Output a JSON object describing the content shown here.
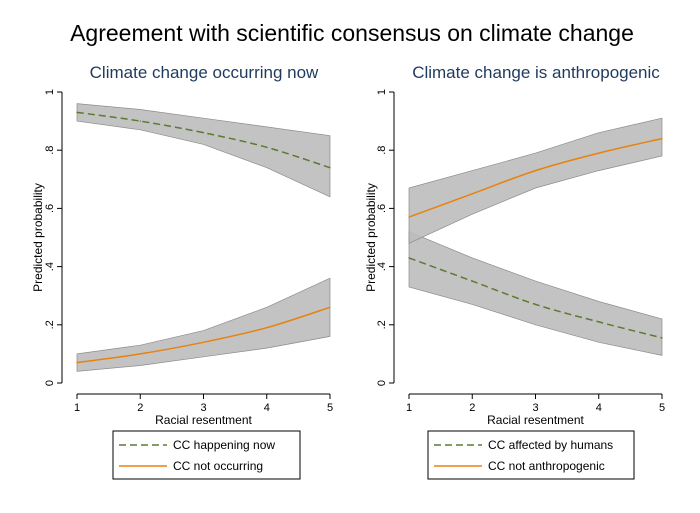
{
  "title": "Agreement with scientific consensus on climate change",
  "colors": {
    "band": "#bdbdbd",
    "band_stroke": "#8c8c8c",
    "dashed": "#5c7a32",
    "solid": "#e8820c",
    "panel_title": "#1f3a5f"
  },
  "chart_data": [
    {
      "type": "line",
      "title": "Climate change occurring now",
      "xlabel": "Racial resentment",
      "ylabel": "Predicted probability",
      "xlim": [
        1,
        5
      ],
      "ylim": [
        0,
        1
      ],
      "x_ticks": [
        "1",
        "2",
        "3",
        "4",
        "5"
      ],
      "y_ticks": [
        "0",
        ".2",
        ".4",
        ".6",
        ".8",
        "1"
      ],
      "grid": false,
      "legend_position": "bottom",
      "x": [
        1,
        2,
        3,
        4,
        5
      ],
      "series": [
        {
          "name": "CC happening now",
          "style": "dashed",
          "values": [
            0.93,
            0.9,
            0.86,
            0.81,
            0.74
          ],
          "ci_lower": [
            0.9,
            0.87,
            0.82,
            0.74,
            0.64
          ],
          "ci_upper": [
            0.96,
            0.94,
            0.91,
            0.88,
            0.85
          ]
        },
        {
          "name": "CC not occurring",
          "style": "solid",
          "values": [
            0.07,
            0.1,
            0.14,
            0.19,
            0.26
          ],
          "ci_lower": [
            0.04,
            0.06,
            0.09,
            0.12,
            0.16
          ],
          "ci_upper": [
            0.1,
            0.13,
            0.18,
            0.26,
            0.36
          ]
        }
      ]
    },
    {
      "type": "line",
      "title": "Climate change is anthropogenic",
      "xlabel": "Racial resentment",
      "ylabel": "Predicted probability",
      "xlim": [
        1,
        5
      ],
      "ylim": [
        0,
        1
      ],
      "x_ticks": [
        "1",
        "2",
        "3",
        "4",
        "5"
      ],
      "y_ticks": [
        "0",
        ".2",
        ".4",
        ".6",
        ".8",
        "1"
      ],
      "grid": false,
      "legend_position": "bottom",
      "x": [
        1,
        2,
        3,
        4,
        5
      ],
      "series": [
        {
          "name": "CC affected by humans",
          "style": "dashed",
          "values": [
            0.43,
            0.35,
            0.27,
            0.21,
            0.155
          ],
          "ci_lower": [
            0.33,
            0.27,
            0.2,
            0.14,
            0.095
          ],
          "ci_upper": [
            0.52,
            0.43,
            0.35,
            0.28,
            0.22
          ]
        },
        {
          "name": "CC not anthropogenic",
          "style": "solid",
          "values": [
            0.57,
            0.65,
            0.73,
            0.79,
            0.84
          ],
          "ci_lower": [
            0.48,
            0.58,
            0.67,
            0.73,
            0.78
          ],
          "ci_upper": [
            0.67,
            0.73,
            0.79,
            0.86,
            0.91
          ]
        }
      ]
    }
  ]
}
